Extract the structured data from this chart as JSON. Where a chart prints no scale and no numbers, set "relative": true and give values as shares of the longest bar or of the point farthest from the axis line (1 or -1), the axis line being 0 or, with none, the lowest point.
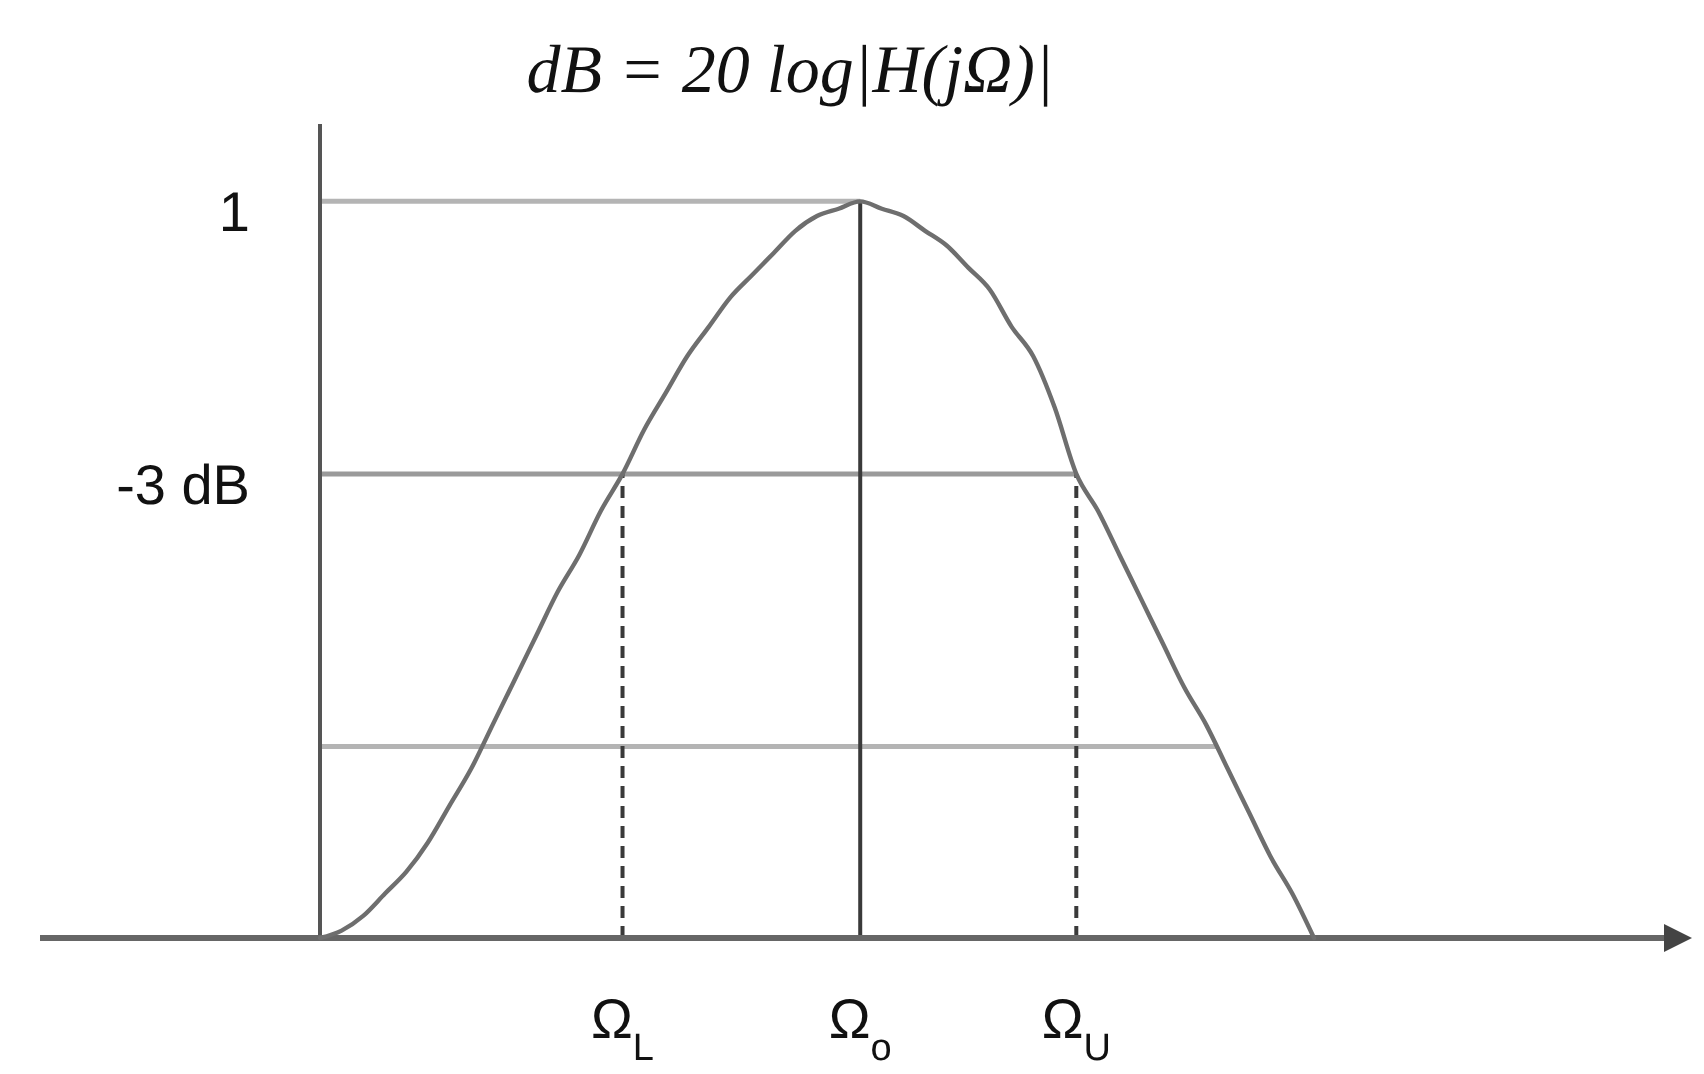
{
  "chart_data": {
    "type": "line",
    "title": "dB = 20 log|H(jΩ)|",
    "relative": true,
    "categories": [
      null,
      null,
      null,
      null,
      null,
      null,
      null,
      null,
      null,
      null,
      null,
      null,
      null,
      null,
      "Ω$_{L}$",
      null,
      null,
      null,
      null,
      null,
      null,
      null,
      null,
      null,
      null,
      "Ω$_{o}$",
      null,
      null,
      null,
      null,
      null,
      null,
      null,
      null,
      null,
      "Ω$_{U}$",
      null,
      null,
      null,
      null,
      null,
      null,
      null,
      null,
      null,
      null,
      null
    ],
    "series": [
      {
        "color": "#6e6e6e",
        "values": [
          0,
          0.01,
          0.03,
          0.06,
          0.09,
          0.13,
          0.18,
          0.23,
          0.29,
          0.35,
          0.41,
          0.47,
          0.52,
          0.58,
          0.63,
          0.69,
          0.74,
          0.79,
          0.83,
          0.87,
          0.9,
          0.93,
          0.96,
          0.98,
          0.99,
          1,
          0.99,
          0.98,
          0.96,
          0.94,
          0.91,
          0.88,
          0.83,
          0.79,
          0.72,
          0.63,
          0.58,
          0.52,
          0.46,
          0.4,
          0.34,
          0.29,
          0.23,
          0.17,
          0.11,
          0.06,
          0
        ]
      }
    ],
    "ref_lines": [
      {
        "axis": "y",
        "value": 1,
        "label": "1",
        "color": "#b4b4b4"
      },
      {
        "axis": "y",
        "value": 0.63,
        "label": "-3 dB",
        "color": "#9a9a9a"
      },
      {
        "axis": "y",
        "value": 0.26,
        "color": "#b4b4b4"
      },
      {
        "axis": "x",
        "value": "Ω$_{L}$",
        "color": "#3a3a3a",
        "line_style": "dashed"
      },
      {
        "axis": "x",
        "value": "Ω$_{o}$",
        "color": "#3a3a3a",
        "line_style": "solid"
      },
      {
        "axis": "x",
        "value": "Ω$_{U}$",
        "color": "#3a3a3a",
        "line_style": "dashed"
      }
    ]
  }
}
